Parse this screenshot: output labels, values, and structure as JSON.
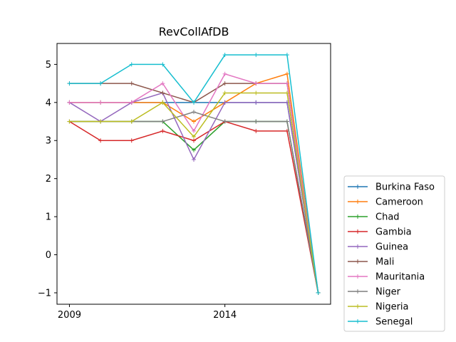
{
  "chart_data": {
    "type": "line",
    "title": "RevCollAfDB",
    "xlabel": "",
    "ylabel": "",
    "x": [
      2009,
      2010,
      2011,
      2012,
      2013,
      2014,
      2015,
      2016,
      2017
    ],
    "xlim": [
      2008.6,
      2017.4
    ],
    "ylim": [
      -1.3,
      5.55
    ],
    "xticks": [
      2009,
      2014
    ],
    "yticks": [
      -1,
      0,
      1,
      2,
      3,
      4,
      5
    ],
    "grid": false,
    "legend_position": "lower-right-outside",
    "series": [
      {
        "name": "Burkina Faso",
        "color": "#1f77b4",
        "values": [
          4,
          4,
          4,
          4,
          4,
          4,
          4,
          4,
          -1
        ]
      },
      {
        "name": "Cameroon",
        "color": "#ff7f0e",
        "values": [
          4,
          4,
          4,
          4,
          3.5,
          4,
          4.5,
          4.75,
          -1
        ]
      },
      {
        "name": "Chad",
        "color": "#2ca02c",
        "values": [
          3.5,
          3.5,
          3.5,
          3.5,
          2.75,
          3.5,
          3.5,
          3.5,
          -1
        ]
      },
      {
        "name": "Gambia",
        "color": "#d62728",
        "values": [
          3.5,
          3,
          3,
          3.25,
          3,
          3.5,
          3.25,
          3.25,
          -1
        ]
      },
      {
        "name": "Guinea",
        "color": "#9467bd",
        "values": [
          4,
          3.5,
          4,
          4.25,
          2.5,
          4,
          4,
          4,
          -1
        ]
      },
      {
        "name": "Mali",
        "color": "#8c564b",
        "values": [
          4.5,
          4.5,
          4.5,
          4.25,
          4,
          4.5,
          4.5,
          4.5,
          -1
        ]
      },
      {
        "name": "Mauritania",
        "color": "#e377c2",
        "values": [
          4,
          4,
          4,
          4.5,
          3.25,
          4.75,
          4.5,
          4.5,
          -1
        ]
      },
      {
        "name": "Niger",
        "color": "#7f7f7f",
        "values": [
          3.5,
          3.5,
          3.5,
          3.5,
          3.75,
          3.5,
          3.5,
          3.5,
          -1
        ]
      },
      {
        "name": "Nigeria",
        "color": "#bcbd22",
        "values": [
          3.5,
          3.5,
          3.5,
          4,
          3.1,
          4.25,
          4.25,
          4.25,
          -1
        ]
      },
      {
        "name": "Senegal",
        "color": "#17becf",
        "values": [
          4.5,
          4.5,
          5,
          5,
          4,
          5.25,
          5.25,
          5.25,
          -1
        ]
      }
    ]
  }
}
